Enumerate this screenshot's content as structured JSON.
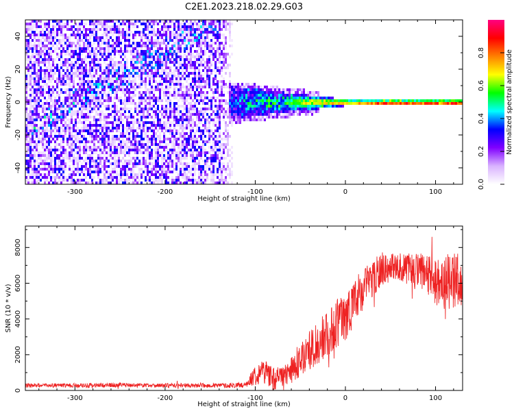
{
  "title": "C2E1.2023.218.02.29.G03",
  "chart_data": [
    {
      "type": "heatmap",
      "xlabel": "Height of straight line (km)",
      "ylabel": "Frequency (Hz)",
      "xlim": [
        -355,
        130
      ],
      "ylim": [
        -50,
        50
      ],
      "xticks": [
        -300,
        -200,
        -100,
        0,
        100
      ],
      "yticks": [
        -40,
        -20,
        0,
        20,
        40
      ],
      "colorbar": {
        "label": "Normalized spectral amplitude",
        "range": [
          0,
          1
        ],
        "ticks": [
          0.0,
          0.2,
          0.4,
          0.6,
          0.8
        ],
        "colors": [
          "#ffffff",
          "#d9b3ff",
          "#8000ff",
          "#0000ff",
          "#00ffff",
          "#00ff00",
          "#ffff00",
          "#ff8000",
          "#ff0000",
          "#ff0080"
        ]
      },
      "features": {
        "noise_region_x": [
          -355,
          -125
        ],
        "noise_drift_start": [
          -350,
          -15
        ],
        "noise_drift_end": [
          -160,
          45
        ],
        "signal_line_x": [
          -130,
          130
        ],
        "signal_line_freq_hz": 0.5,
        "signal_peak_amplitude": 0.95
      },
      "grid": false
    },
    {
      "type": "line",
      "xlabel": "Height of straight line (km)",
      "ylabel": "SNR (10 * v/v)",
      "xlim": [
        -355,
        130
      ],
      "ylim": [
        0,
        9200
      ],
      "xticks": [
        -300,
        -200,
        -100,
        0,
        100
      ],
      "yticks": [
        0,
        2000,
        4000,
        6000,
        8000
      ],
      "color": "#ee2222",
      "x": [
        -355,
        -300,
        -250,
        -200,
        -150,
        -110,
        -100,
        -90,
        -80,
        -70,
        -60,
        -50,
        -40,
        -30,
        -20,
        -10,
        0,
        10,
        20,
        30,
        40,
        50,
        60,
        70,
        80,
        90,
        100,
        110,
        120,
        130
      ],
      "values": [
        280,
        280,
        300,
        280,
        270,
        300,
        900,
        1100,
        700,
        650,
        1000,
        1800,
        2200,
        2700,
        3200,
        3700,
        4200,
        4900,
        5600,
        6300,
        6700,
        6900,
        6950,
        6800,
        6600,
        6400,
        6200,
        6100,
        6000,
        5900
      ],
      "noise_amplitude": [
        120,
        120,
        120,
        120,
        120,
        150,
        600,
        700,
        650,
        700,
        800,
        1000,
        1100,
        1200,
        1300,
        1400,
        1400,
        1400,
        1300,
        1100,
        900,
        800,
        800,
        900,
        1100,
        1300,
        1500,
        1600,
        1700,
        1700
      ],
      "grid": false
    }
  ]
}
